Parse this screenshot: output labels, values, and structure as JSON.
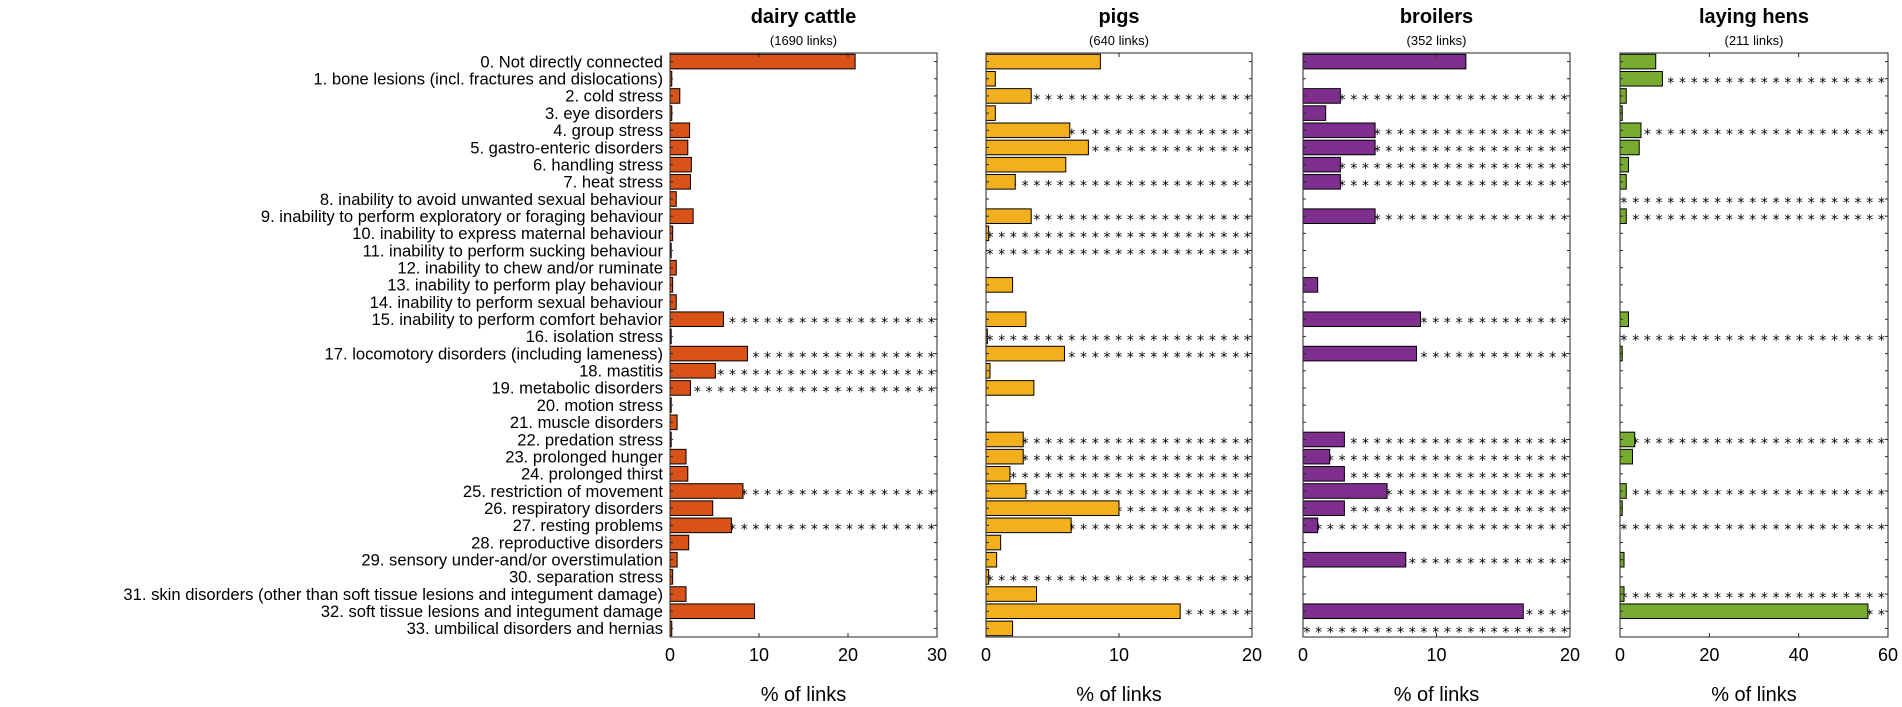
{
  "chart_data": {
    "type": "bar",
    "orientation": "horizontal",
    "categories": [
      "0. Not directly connected",
      "1. bone lesions (incl. fractures and dislocations)",
      "2. cold stress",
      "3. eye disorders",
      "4. group stress",
      "5. gastro-enteric disorders",
      "6. handling stress",
      "7. heat stress",
      "8. inability to avoid unwanted sexual behaviour",
      "9. inability to perform exploratory or foraging behaviour",
      "10. inability to express maternal behaviour",
      "11. inability to perform sucking behaviour",
      "12. inability to chew and/or ruminate",
      "13. inability to perform play behaviour",
      "14. inability to perform sexual behaviour",
      "15. inability to perform comfort behavior",
      "16. isolation stress",
      "17. locomotory disorders (including lameness)",
      "18. mastitis",
      "19. metabolic disorders",
      "20. motion stress",
      "21. muscle disorders",
      "22. predation stress",
      "23. prolonged hunger",
      "24. prolonged thirst",
      "25. restriction of movement",
      "26. respiratory disorders",
      "27. resting problems",
      "28. reproductive disorders",
      "29. sensory under-and/or overstimulation",
      "30. separation stress",
      "31. skin disorders (other than soft tissue lesions and integument damage)",
      "32. soft tissue lesions and integument damage",
      "33. umbilical disorders and hernias"
    ],
    "series": [
      {
        "name": "dairy cattle",
        "subtitle": "(1690  links)",
        "color": "#d95319",
        "xlim": [
          0,
          30
        ],
        "xticks": [
          0,
          10,
          20,
          30
        ],
        "xlabel": "% of links",
        "values": [
          20.8,
          0.2,
          1.1,
          0.2,
          2.2,
          2.0,
          2.4,
          2.3,
          0.7,
          2.6,
          0.3,
          0.1,
          0.7,
          0.3,
          0.7,
          6.0,
          0.1,
          8.7,
          5.1,
          2.3,
          0.1,
          0.8,
          0.1,
          1.8,
          2.0,
          8.2,
          4.8,
          6.9,
          2.1,
          0.8,
          0.3,
          1.8,
          9.5,
          0.2
        ],
        "star_rows": [
          15,
          17,
          18,
          19,
          25,
          27
        ]
      },
      {
        "name": "pigs",
        "subtitle": "(640  links)",
        "color": "#f2b01e",
        "xlim": [
          0,
          20
        ],
        "xticks": [
          0,
          10,
          20
        ],
        "xlabel": "% of links",
        "values": [
          8.6,
          0.7,
          3.4,
          0.7,
          6.3,
          7.7,
          6.0,
          2.2,
          0.0,
          3.4,
          0.2,
          0.0,
          0.0,
          2.0,
          0.0,
          3.0,
          0.1,
          5.9,
          0.3,
          3.6,
          0.0,
          0.0,
          2.8,
          2.8,
          1.8,
          3.0,
          10.0,
          6.4,
          1.1,
          0.8,
          0.2,
          3.8,
          14.6,
          2.0
        ],
        "star_rows": [
          2,
          4,
          5,
          7,
          9,
          10,
          11,
          16,
          17,
          22,
          23,
          24,
          25,
          26,
          27,
          30,
          32
        ]
      },
      {
        "name": "broilers",
        "subtitle": "(352  links)",
        "color": "#7e2f8e",
        "xlim": [
          0,
          20
        ],
        "xticks": [
          0,
          10,
          20
        ],
        "xlabel": "% of links",
        "values": [
          12.2,
          0.0,
          2.8,
          1.7,
          5.4,
          5.4,
          2.8,
          2.8,
          0.0,
          5.4,
          0.0,
          0.0,
          0.0,
          1.1,
          0.0,
          8.8,
          0.0,
          8.5,
          0.0,
          0.0,
          0.0,
          0.0,
          3.1,
          2.0,
          3.1,
          6.3,
          3.1,
          1.1,
          0.0,
          7.7,
          0.0,
          0.0,
          16.5,
          0.0
        ],
        "star_rows": [
          2,
          4,
          5,
          6,
          7,
          9,
          15,
          17,
          22,
          23,
          24,
          25,
          26,
          27,
          29,
          32,
          33
        ]
      },
      {
        "name": "laying hens",
        "subtitle": "(211  links)",
        "color": "#77ac30",
        "xlim": [
          0,
          60
        ],
        "xticks": [
          0,
          20,
          40,
          60
        ],
        "xlabel": "% of links",
        "values": [
          8.0,
          9.5,
          1.4,
          0.5,
          4.7,
          4.3,
          1.9,
          1.4,
          0.0,
          1.4,
          0.0,
          0.0,
          0.0,
          0.0,
          0.0,
          1.9,
          0.0,
          0.5,
          0.0,
          0.0,
          0.0,
          0.0,
          3.3,
          2.8,
          0.0,
          1.4,
          0.5,
          0.0,
          0.0,
          0.9,
          0.0,
          0.9,
          55.5,
          0.0
        ],
        "star_rows": [
          1,
          4,
          8,
          9,
          16,
          22,
          25,
          27,
          31,
          32
        ]
      }
    ],
    "significance_marker": "*"
  }
}
